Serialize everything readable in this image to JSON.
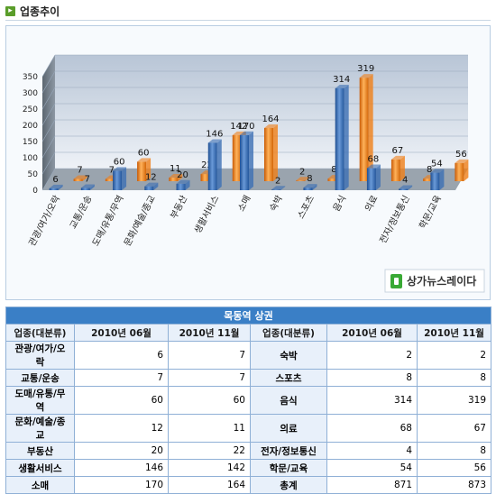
{
  "page": {
    "title": "업종추이",
    "title_icon": "arrow-right-icon"
  },
  "chart_data": {
    "type": "bar",
    "categories": [
      "관광/여가/오락",
      "교통/운송",
      "도매/유통/무역",
      "문화/예술/종교",
      "부동산",
      "생활서비스",
      "소매",
      "숙박",
      "스포츠",
      "음식",
      "의료",
      "전자/정보통신",
      "학문/교육"
    ],
    "series": [
      {
        "values": [
          6,
          7,
          60,
          12,
          20,
          146,
          170,
          2,
          8,
          314,
          68,
          4,
          54
        ],
        "color": "#3c6fb4"
      },
      {
        "values": [
          7,
          7,
          60,
          11,
          22,
          142,
          164,
          2,
          8,
          319,
          67,
          8,
          56
        ],
        "color": "#f07f18"
      }
    ],
    "yticks": [
      "0",
      "50",
      "100",
      "150",
      "200",
      "250",
      "300",
      "350"
    ],
    "ylim": [
      0,
      350
    ],
    "grid": true,
    "legend": "none",
    "watermark": "상가뉴스레이다"
  },
  "table": {
    "caption": "목동역 상권",
    "headers": [
      "업종(대분류)",
      "2010년 06월",
      "2010년 11월",
      "업종(대분류)",
      "2010년 06월",
      "2010년 11월"
    ],
    "rows": [
      [
        "관광/여가/오락",
        "6",
        "7",
        "숙박",
        "2",
        "2"
      ],
      [
        "교통/운송",
        "7",
        "7",
        "스포츠",
        "8",
        "8"
      ],
      [
        "도매/유통/무역",
        "60",
        "60",
        "음식",
        "314",
        "319"
      ],
      [
        "문화/예술/종교",
        "12",
        "11",
        "의료",
        "68",
        "67"
      ],
      [
        "부동산",
        "20",
        "22",
        "전자/정보통신",
        "4",
        "8"
      ],
      [
        "생활서비스",
        "146",
        "142",
        "학문/교육",
        "54",
        "56"
      ],
      [
        "소매",
        "170",
        "164",
        "총계",
        "871",
        "873"
      ]
    ]
  }
}
